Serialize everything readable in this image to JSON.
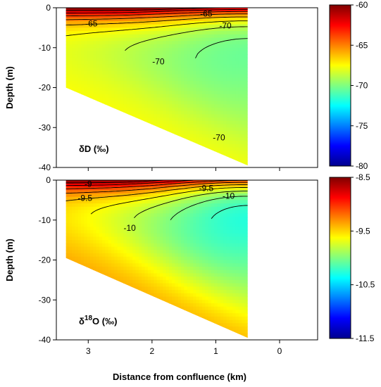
{
  "xlabel": "Distance from confluence (km)",
  "ylabel": "Depth (m)",
  "colors": {
    "colormap": [
      "#00008f",
      "#0000ff",
      "#0080ff",
      "#00ffff",
      "#80ff80",
      "#ffff00",
      "#ff8000",
      "#ff0000",
      "#800000"
    ],
    "contour_line": "#000000",
    "background": "#ffffff"
  },
  "chart_data": [
    {
      "type": "heatmap",
      "name": "dD",
      "panel_label_prefix": "δD",
      "panel_label_sup": "",
      "panel_label_suffix": " (‰)",
      "xlim": [
        3.5,
        0
      ],
      "ylim": [
        -40,
        0
      ],
      "x_ticks": [
        3,
        2,
        1,
        0
      ],
      "y_ticks": [
        0,
        -10,
        -20,
        -30,
        -40
      ],
      "colorbar_range": [
        -80,
        -60
      ],
      "colorbar_ticks": [
        -60,
        -65,
        -70,
        -75,
        -80
      ],
      "colorbar_tick_labels": [
        "-60",
        "-65",
        "-70",
        "-75",
        "-80"
      ],
      "contour_labels": [
        {
          "text": "-65",
          "x": 2.95,
          "depth": -4
        },
        {
          "text": "-65",
          "x": 1.15,
          "depth": -1.5
        },
        {
          "text": "-70",
          "x": 0.85,
          "depth": -4.5
        },
        {
          "text": "-70",
          "x": 1.9,
          "depth": -13.5
        },
        {
          "text": "-70",
          "x": 0.95,
          "depth": -32.5
        }
      ],
      "surface_value": -60,
      "min_value": -71,
      "deep_value": -68.5,
      "bottom_profile": [
        [
          3.35,
          -20
        ],
        [
          0.5,
          -39.5
        ]
      ]
    },
    {
      "type": "heatmap",
      "name": "d18O",
      "panel_label_prefix": "δ",
      "panel_label_sup": "18",
      "panel_label_suffix": "O (‰)",
      "xlim": [
        3.5,
        0
      ],
      "ylim": [
        -40,
        0
      ],
      "x_ticks": [
        3,
        2,
        1,
        0
      ],
      "x_tick_labels": [
        "3",
        "2",
        "1",
        "0"
      ],
      "y_ticks": [
        0,
        -10,
        -20,
        -30,
        -40
      ],
      "colorbar_range": [
        -11.5,
        -8.5
      ],
      "colorbar_ticks": [
        -8.5,
        -9.5,
        -10.5,
        -11.5
      ],
      "colorbar_tick_labels": [
        "-8.5",
        "-9.5",
        "-10.5",
        "-11.5"
      ],
      "contour_labels": [
        {
          "text": "-9",
          "x": 3.0,
          "depth": -1
        },
        {
          "text": "-9.5",
          "x": 3.05,
          "depth": -4.5
        },
        {
          "text": "-9.5",
          "x": 1.15,
          "depth": -2
        },
        {
          "text": "-10",
          "x": 0.8,
          "depth": -4
        },
        {
          "text": "-10",
          "x": 2.35,
          "depth": -12
        }
      ],
      "surface_value": -8.5,
      "min_value": -10.4,
      "deep_value": -9.65,
      "bottom_profile": [
        [
          3.35,
          -19.5
        ],
        [
          0.5,
          -39.5
        ]
      ]
    }
  ]
}
